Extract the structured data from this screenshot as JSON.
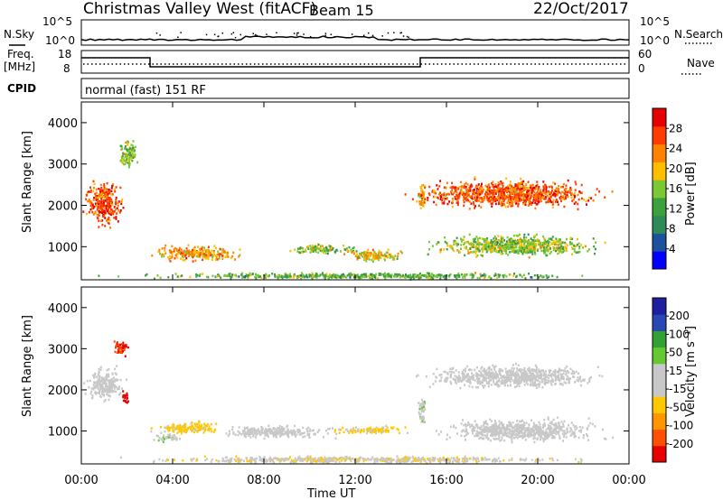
{
  "header": {
    "title": "Christmas Valley West (fitACF)",
    "beam": "Beam 15",
    "date": "22/Oct/2017"
  },
  "side_labels": {
    "nsky": "N.Sky",
    "freq_line1": "Freq.",
    "freq_line2": "[MHz]",
    "cpid": "CPID",
    "nsearch": "N.Search",
    "nave": "Nave"
  },
  "strip_ticks": {
    "noise_left": [
      "10^5",
      "10^0"
    ],
    "noise_right": [
      "10^5",
      "10^0"
    ],
    "freq_left": [
      "18",
      "8"
    ],
    "freq_right": [
      "60",
      "0"
    ]
  },
  "cpid_text": "normal (fast) 151 RF",
  "colors": {
    "power_scale": [
      "#0000ff",
      "#1e50a0",
      "#2e8b57",
      "#3ca03c",
      "#7cc832",
      "#ffbe00",
      "#ff8200",
      "#ff3c00",
      "#e60000"
    ],
    "velocity_scale": [
      "#e60000",
      "#ff5000",
      "#ff9600",
      "#ffc800",
      "#c8c8c8",
      "#c8c8c8",
      "#64c832",
      "#32a032",
      "#2846b4",
      "#1e1ea0"
    ]
  },
  "chart_data": [
    {
      "type": "heatmap",
      "name": "power",
      "ylabel": "Slant Range [km]",
      "yticks": [
        "1000",
        "2000",
        "3000",
        "4000"
      ],
      "ylim": [
        200,
        4500
      ],
      "colorbar_label": "Power [dB]",
      "colorbar_ticks": [
        "4",
        "8",
        "12",
        "16",
        "20",
        "24",
        "28"
      ],
      "colorbar_range": [
        0,
        32
      ],
      "blobs": [
        {
          "t": 1.0,
          "r": 2050,
          "dt": 1.0,
          "dr": 650,
          "v": 26
        },
        {
          "t": 2.0,
          "r": 3250,
          "dt": 0.5,
          "dr": 450,
          "v": 16
        },
        {
          "t": 5.0,
          "r": 870,
          "dt": 2.3,
          "dr": 230,
          "v": 22
        },
        {
          "t": 10.5,
          "r": 970,
          "dt": 1.8,
          "dr": 140,
          "v": 16
        },
        {
          "t": 12.8,
          "r": 800,
          "dt": 1.6,
          "dr": 180,
          "v": 20
        },
        {
          "t": 14.9,
          "r": 2150,
          "dt": 0.2,
          "dr": 480,
          "v": 22
        },
        {
          "t": 18.6,
          "r": 2300,
          "dt": 4.8,
          "dr": 420,
          "v": 26
        },
        {
          "t": 19.0,
          "r": 1050,
          "dt": 4.4,
          "dr": 330,
          "v": 16
        },
        {
          "t": 12.0,
          "r": 320,
          "dt": 12.0,
          "dr": 90,
          "v": 14
        }
      ]
    },
    {
      "type": "heatmap",
      "name": "velocity",
      "ylabel": "Slant Range [km]",
      "yticks": [
        "1000",
        "2000",
        "3000",
        "4000"
      ],
      "ylim": [
        200,
        4500
      ],
      "colorbar_label": "Velocity [m s⁻¹]",
      "colorbar_ticks": [
        "-200",
        "-100",
        "-50",
        "-15",
        "15",
        "50",
        "100",
        "200"
      ],
      "colorbar_range": [
        -250,
        250
      ],
      "blobs": [
        {
          "t": 1.0,
          "r": 2150,
          "dt": 1.0,
          "dr": 500,
          "v": 0
        },
        {
          "t": 1.7,
          "r": 3050,
          "dt": 0.4,
          "dr": 250,
          "v": -200
        },
        {
          "t": 1.9,
          "r": 1850,
          "dt": 0.2,
          "dr": 200,
          "v": -230
        },
        {
          "t": 4.6,
          "r": 1100,
          "dt": 2.0,
          "dr": 180,
          "v": -60
        },
        {
          "t": 3.8,
          "r": 850,
          "dt": 0.7,
          "dr": 120,
          "v": 40
        },
        {
          "t": 8.5,
          "r": 1000,
          "dt": 3.0,
          "dr": 200,
          "v": 0
        },
        {
          "t": 12.5,
          "r": 1050,
          "dt": 2.0,
          "dr": 120,
          "v": -60
        },
        {
          "t": 14.9,
          "r": 1500,
          "dt": 0.2,
          "dr": 500,
          "v": 40
        },
        {
          "t": 18.8,
          "r": 2350,
          "dt": 4.6,
          "dr": 350,
          "v": 0
        },
        {
          "t": 19.2,
          "r": 1050,
          "dt": 4.2,
          "dr": 350,
          "v": 0
        },
        {
          "t": 12.0,
          "r": 330,
          "dt": 12.0,
          "dr": 100,
          "v": -40
        }
      ]
    }
  ],
  "xaxis": {
    "label": "Time UT",
    "ticks": [
      "00:00",
      "04:00",
      "08:00",
      "12:00",
      "16:00",
      "20:00",
      "00:00"
    ]
  }
}
